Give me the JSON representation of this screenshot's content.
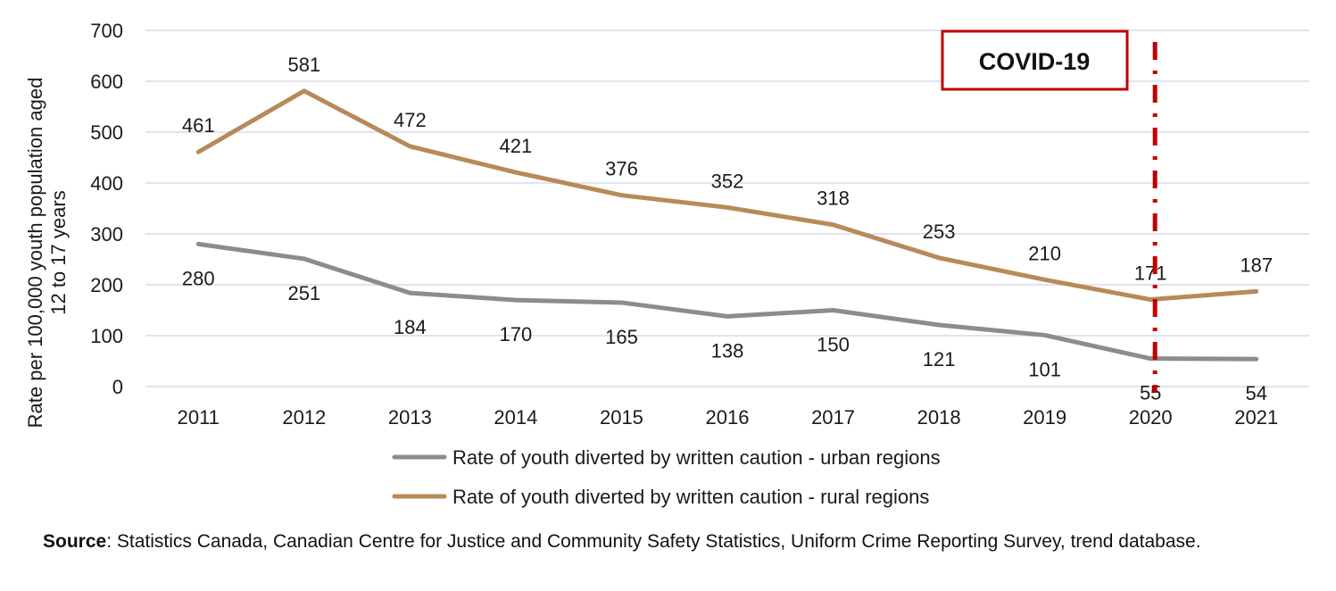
{
  "chart_data": {
    "type": "line",
    "title": "",
    "xlabel": "",
    "ylabel": "Rate per 100,000 youth population aged 12 to 17 years",
    "ylabel_lines": [
      "Rate per 100,000 youth population aged",
      "12 to 17 years"
    ],
    "ylim": [
      0,
      700
    ],
    "yticks": [
      0,
      100,
      200,
      300,
      400,
      500,
      600,
      700
    ],
    "grid": true,
    "legend_position": "bottom",
    "categories": [
      "2011",
      "2012",
      "2013",
      "2014",
      "2015",
      "2016",
      "2017",
      "2018",
      "2019",
      "2020",
      "2021"
    ],
    "series": [
      {
        "name": "Rate of youth diverted by written caution - urban regions",
        "color": "#8c8c8c",
        "label_position": "below",
        "values": [
          280,
          251,
          184,
          170,
          165,
          138,
          150,
          121,
          101,
          55,
          54
        ]
      },
      {
        "name": "Rate of youth diverted by written caution - rural regions",
        "color": "#b88a59",
        "label_position": "above",
        "values": [
          461,
          581,
          472,
          421,
          376,
          352,
          318,
          253,
          210,
          171,
          187
        ]
      }
    ],
    "annotation": {
      "label": "COVID-19",
      "at_category": "2020",
      "color": "#c00000"
    }
  },
  "source": {
    "label": "Source",
    "text": ": Statistics Canada, Canadian Centre for Justice and Community Safety Statistics, Uniform Crime Reporting Survey, trend database."
  }
}
